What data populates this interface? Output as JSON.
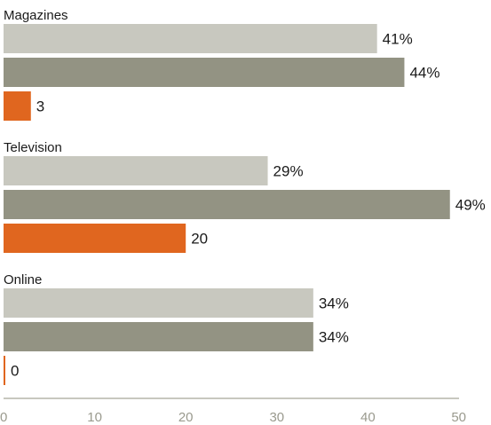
{
  "chart_data": {
    "type": "bar",
    "orientation": "horizontal",
    "categories": [
      "Magazines",
      "Television",
      "Online"
    ],
    "series": [
      {
        "values": [
          41,
          29,
          34
        ],
        "labels": [
          "41%",
          "29%",
          "34%"
        ],
        "color": "#c8c8bf"
      },
      {
        "values": [
          44,
          49,
          34
        ],
        "labels": [
          "44%",
          "49%",
          "34%"
        ],
        "color": "#939383"
      },
      {
        "values": [
          3,
          20,
          0
        ],
        "labels": [
          "3",
          "20",
          "0"
        ],
        "color": "#e0661f"
      }
    ],
    "xlim": [
      0,
      50
    ],
    "x_ticks": [
      0,
      10,
      20,
      30,
      40,
      50
    ],
    "axis_color": "#c8c8bf",
    "tick_color": "#9a9a8e",
    "grid": false,
    "legend": "none"
  }
}
